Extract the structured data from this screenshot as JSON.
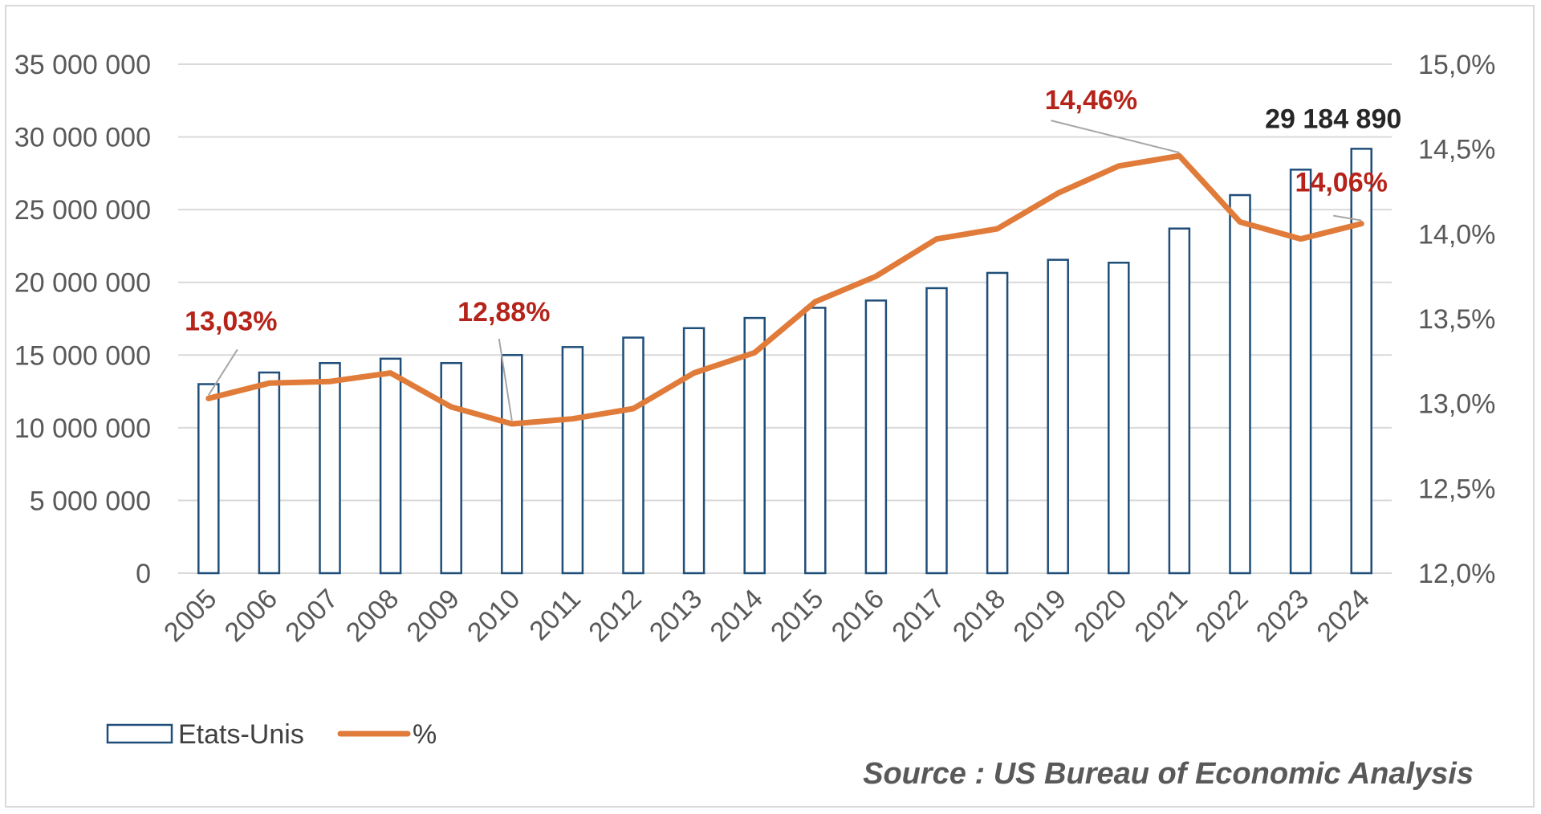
{
  "colors": {
    "bar_stroke": "#1f4e79",
    "bar_fill": "#ffffff",
    "line": "#e07b39",
    "grid": "#d9d9d9",
    "pct_label": "#b5231a",
    "tick": "#595959"
  },
  "source": "Source : US Bureau of Economic Analysis",
  "chart_data": {
    "type": "bar",
    "title": "",
    "categories": [
      "2005",
      "2006",
      "2007",
      "2008",
      "2009",
      "2010",
      "2011",
      "2012",
      "2013",
      "2014",
      "2015",
      "2016",
      "2017",
      "2018",
      "2019",
      "2020",
      "2021",
      "2022",
      "2023",
      "2024"
    ],
    "series": [
      {
        "name": "Etats-Unis",
        "type": "bar",
        "axis": "left",
        "values": [
          13000000,
          13800000,
          14450000,
          14750000,
          14450000,
          15000000,
          15550000,
          16200000,
          16850000,
          17550000,
          18250000,
          18750000,
          19600000,
          20650000,
          21550000,
          21350000,
          23700000,
          26000000,
          27750000,
          29184890
        ]
      },
      {
        "name": "%",
        "type": "line",
        "axis": "right",
        "values": [
          13.03,
          13.12,
          13.13,
          13.18,
          12.98,
          12.88,
          12.91,
          12.97,
          13.18,
          13.3,
          13.6,
          13.75,
          13.97,
          14.03,
          14.24,
          14.4,
          14.46,
          14.07,
          13.97,
          14.06
        ]
      }
    ],
    "y_left": {
      "ylim": [
        0,
        35000000
      ],
      "ticks": [
        "35 000 000",
        "30 000 000",
        "25 000 000",
        "20 000 000",
        "15 000 000",
        "10 000 000",
        "5 000 000",
        "0"
      ]
    },
    "y_right": {
      "ylim": [
        12.0,
        15.0
      ],
      "ticks": [
        "15,0%",
        "14,5%",
        "14,0%",
        "13,5%",
        "13,0%",
        "12,5%",
        "12,0%"
      ]
    },
    "grid": true,
    "legend": "bottom-left",
    "annotations": [
      {
        "text": "13,03%",
        "series": "%",
        "category": "2005"
      },
      {
        "text": "12,88%",
        "series": "%",
        "category": "2010"
      },
      {
        "text": "14,46%",
        "series": "%",
        "category": "2021"
      },
      {
        "text": "14,06%",
        "series": "%",
        "category": "2024"
      },
      {
        "text": "29 184 890",
        "series": "Etats-Unis",
        "category": "2024"
      }
    ]
  }
}
